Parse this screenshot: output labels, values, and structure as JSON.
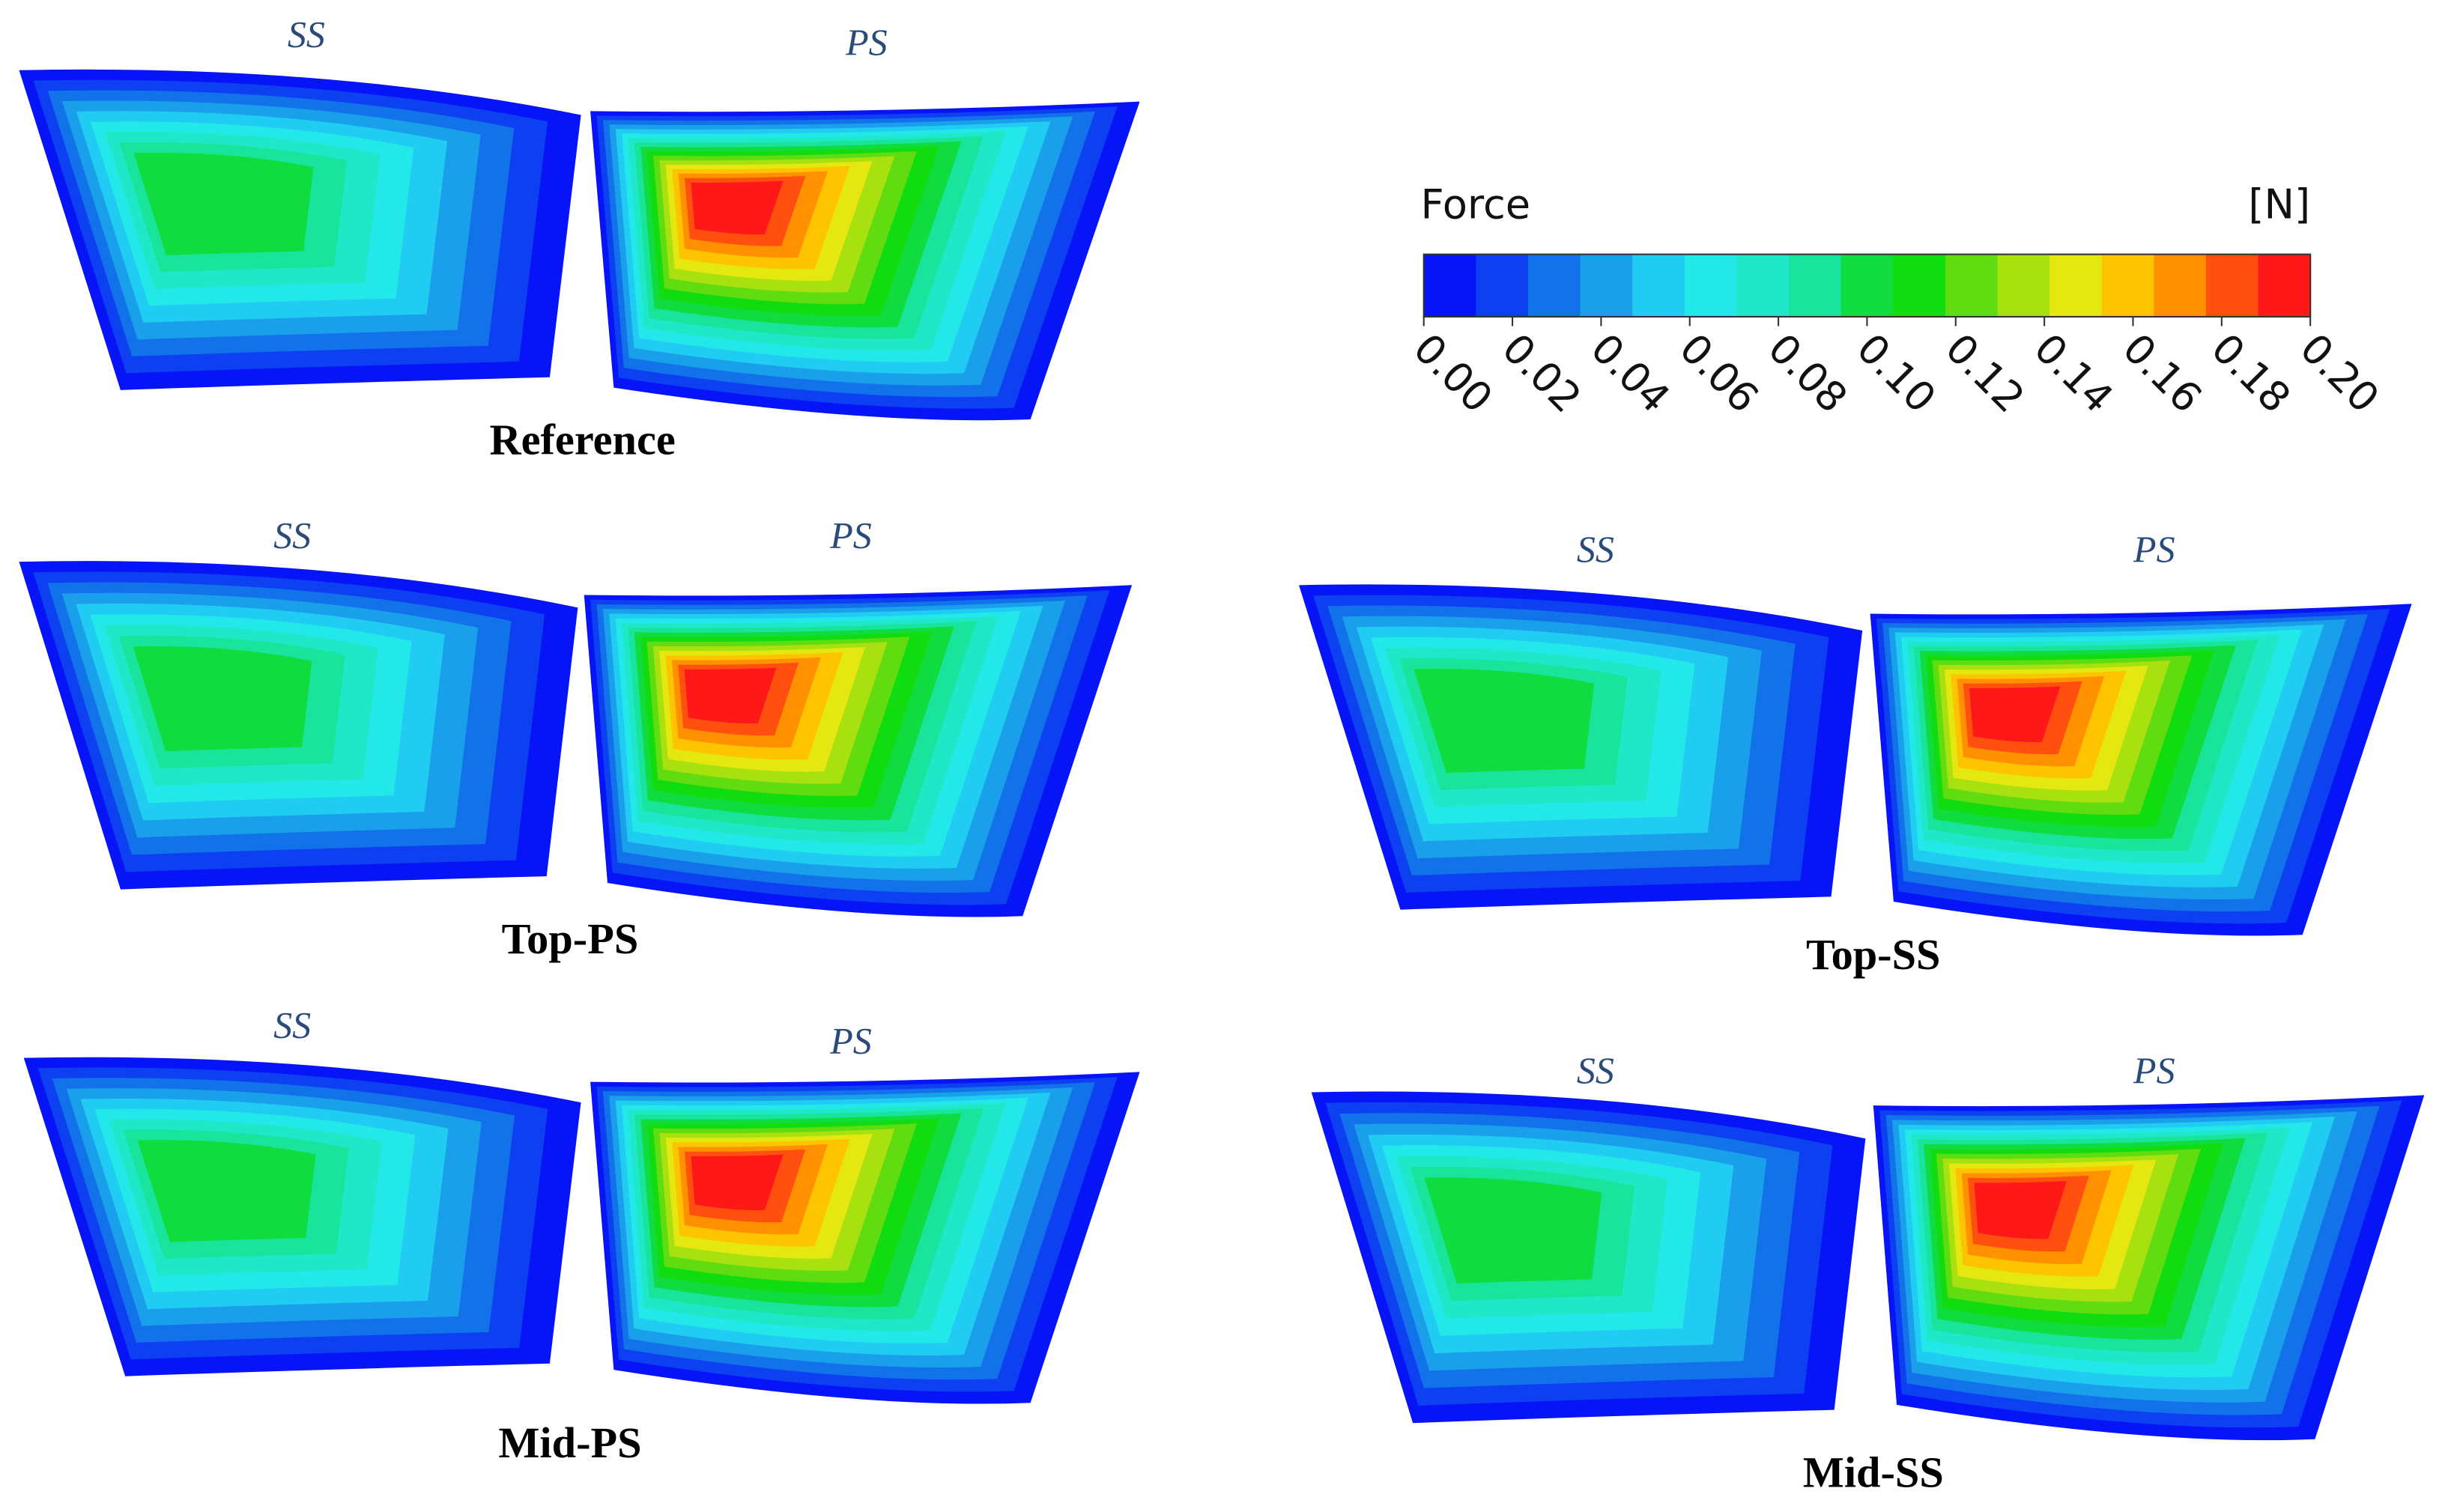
{
  "colorbar": {
    "title": "Force",
    "unit": "[N]",
    "ticks": [
      {
        "value": 0,
        "label": "0.00"
      },
      {
        "value": 0.02,
        "label": "0.02"
      },
      {
        "value": 0.04,
        "label": "0.04"
      },
      {
        "value": 0.06,
        "label": "0.06"
      },
      {
        "value": 0.08,
        "label": "0.08"
      },
      {
        "value": 0.1,
        "label": "0.10"
      },
      {
        "value": 0.12,
        "label": "0.12"
      },
      {
        "value": 0.14,
        "label": "0.14"
      },
      {
        "value": 0.16,
        "label": "0.16"
      },
      {
        "value": 0.18,
        "label": "0.18"
      },
      {
        "value": 0.2,
        "label": "0.20"
      }
    ],
    "colors": [
      "#0814f8",
      "#0c40f0",
      "#1272ea",
      "#1aa0ea",
      "#20ccf2",
      "#22e8ea",
      "#1ee8c8",
      "#18e49c",
      "#10dc40",
      "#10dc10",
      "#60dc10",
      "#a8e010",
      "#e4e810",
      "#ffc400",
      "#ff9000",
      "#ff5010",
      "#ff1818"
    ]
  },
  "panels": [
    {
      "title": "Reference",
      "ss_label": "SS",
      "ps_label": "PS"
    },
    {
      "title": "Top-PS",
      "ss_label": "SS",
      "ps_label": "PS"
    },
    {
      "title": "Top-SS",
      "ss_label": "SS",
      "ps_label": "PS"
    },
    {
      "title": "Mid-PS",
      "ss_label": "SS",
      "ps_label": "PS"
    },
    {
      "title": "Mid-SS",
      "ss_label": "SS",
      "ps_label": "PS"
    }
  ]
}
